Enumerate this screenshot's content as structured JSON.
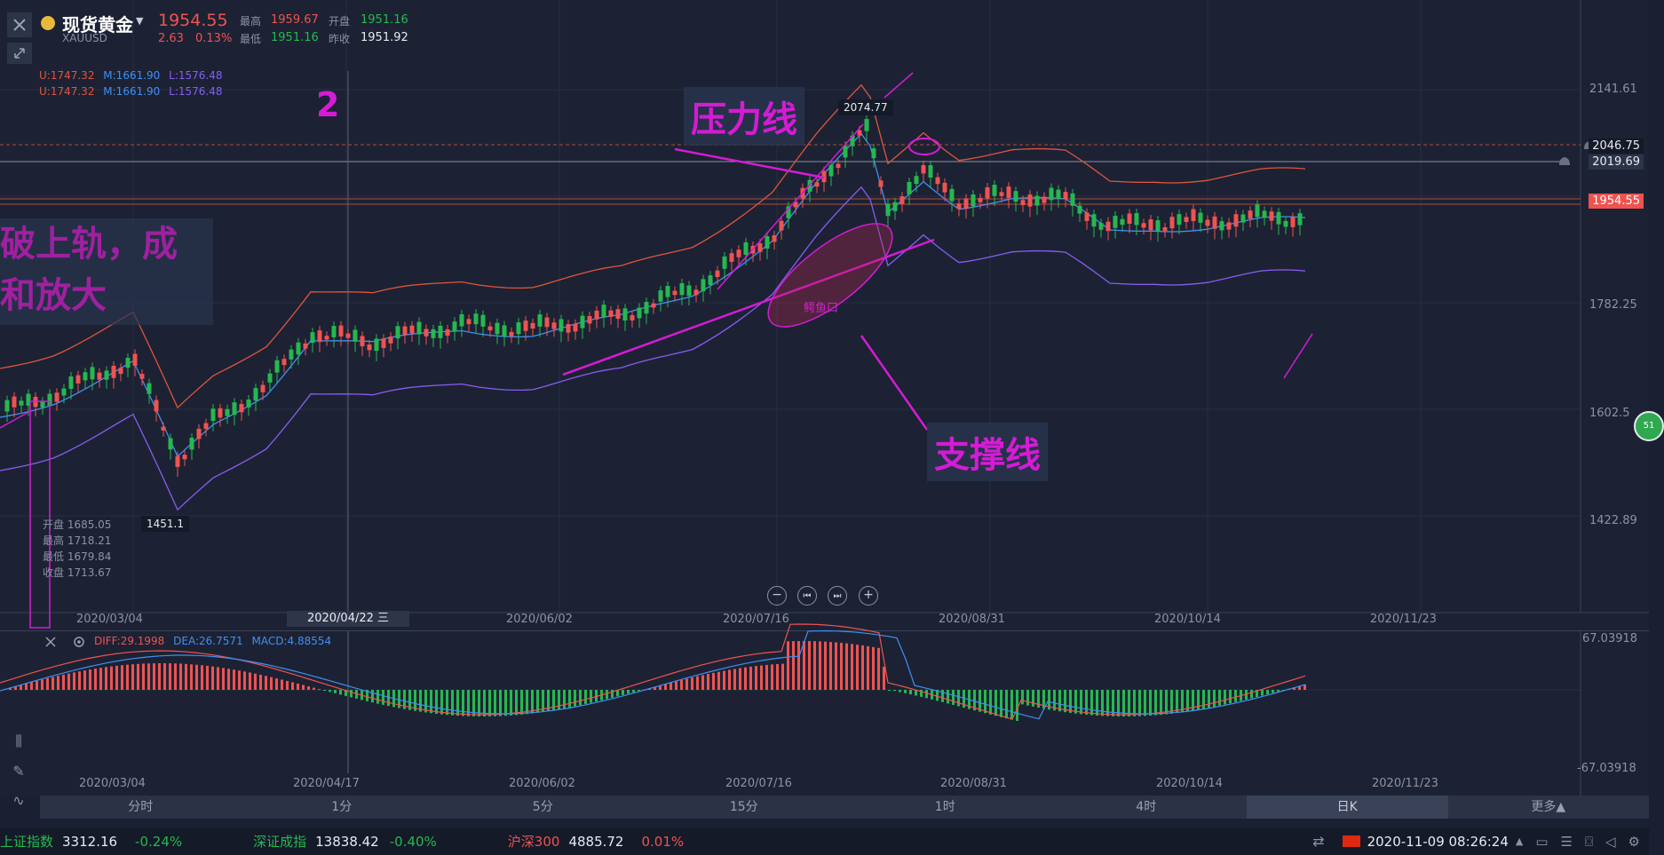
{
  "header": {
    "symbol_name": "现货黄金",
    "symbol_code": "XAUUSD",
    "last_price": "1954.55",
    "change": "2.63",
    "change_pct": "0.13%",
    "high_label": "最高",
    "high_value": "1959.67",
    "low_label": "最低",
    "low_value": "1951.16",
    "open_label": "开盘",
    "open_value": "1951.16",
    "prev_close_label": "昨收",
    "prev_close_value": "1951.92"
  },
  "boll": {
    "line1": {
      "u": "U:1747.32",
      "m": "M:1661.90",
      "l": "L:1576.48"
    },
    "line2": {
      "u": "U:1747.32",
      "m": "M:1661.90",
      "l": "L:1576.48"
    }
  },
  "price_axis": {
    "ticks": [
      "2141.61",
      "1782.25",
      "1602.5",
      "1422.89"
    ],
    "ref_tag": "2046.75",
    "alert_tag": "2019.69",
    "current_tag": "1954.55",
    "circle_badge": "51"
  },
  "date_axis": {
    "labels": [
      "2020/03/04",
      "2020/06/02",
      "2020/07/16",
      "2020/08/31",
      "2020/10/14",
      "2020/11/23"
    ],
    "cursor_label": "2020/04/22 三"
  },
  "cursor_tooltip": {
    "open": "开盘 1685.05",
    "high": "最高 1718.21",
    "low": "最低 1679.84",
    "close": "收盘 1713.67"
  },
  "markers": {
    "high_label": "2074.77",
    "low_label": "1451.1"
  },
  "annotations": {
    "number": "2",
    "pressure_line": "压力线",
    "support_line": "支撑线",
    "crocodile": "鳄鱼口",
    "left_text_line1": "破上轨，成",
    "left_text_line2": "和放大"
  },
  "macd": {
    "diff": "DIFF:29.1998",
    "dea": "DEA:26.7571",
    "macd": "MACD:4.88554",
    "top_value": "67.03918",
    "bottom_value": "-67.03918",
    "date_labels": [
      "2020/03/04",
      "2020/04/17",
      "2020/06/02",
      "2020/07/16",
      "2020/08/31",
      "2020/10/14",
      "2020/11/23"
    ]
  },
  "timeframes": [
    "分时",
    "1分",
    "5分",
    "15分",
    "1时",
    "4时",
    "日K",
    "更多▲"
  ],
  "status": {
    "idx1_name": "上证指数",
    "idx1_value": "3312.16",
    "idx1_change": "-0.24%",
    "idx2_name": "深证成指",
    "idx2_value": "13838.42",
    "idx2_change": "-0.40%",
    "idx3_name": "沪深300",
    "idx3_value": "4885.72",
    "idx3_change": "0.01%",
    "datetime": "2020-11-09 08:26:24"
  },
  "colors": {
    "up": "#ef5350",
    "down": "#26b84f",
    "boll_upper": "#e0553a",
    "boll_mid": "#3f8ff5",
    "boll_lower": "#8a5cf0",
    "annotation": "#d51bd5"
  }
}
